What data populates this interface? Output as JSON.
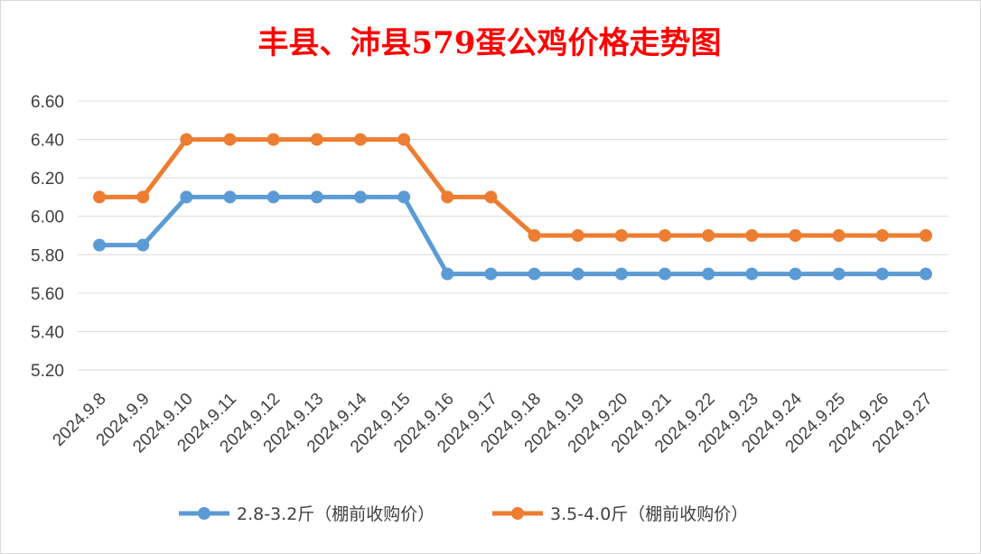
{
  "chart_data": {
    "type": "line",
    "title": "丰县、沛县579蛋公鸡价格走势图",
    "xlabel": "",
    "ylabel": "",
    "ylim": [
      5.2,
      6.6
    ],
    "y_ticks": [
      "5.20",
      "5.40",
      "5.60",
      "5.80",
      "6.00",
      "6.20",
      "6.40",
      "6.60"
    ],
    "grid": true,
    "legend_position": "bottom",
    "categories": [
      "2024.9.8",
      "2024.9.9",
      "2024.9.10",
      "2024.9.11",
      "2024.9.12",
      "2024.9.13",
      "2024.9.14",
      "2024.9.15",
      "2024.9.16",
      "2024.9.17",
      "2024.9.18",
      "2024.9.19",
      "2024.9.20",
      "2024.9.21",
      "2024.9.22",
      "2024.9.23",
      "2024.9.24",
      "2024.9.25",
      "2024.9.26",
      "2024.9.27"
    ],
    "series": [
      {
        "name": "2.8-3.2斤（棚前收购价）",
        "color": "#5b9bd5",
        "values": [
          5.85,
          5.85,
          6.1,
          6.1,
          6.1,
          6.1,
          6.1,
          6.1,
          5.7,
          5.7,
          5.7,
          5.7,
          5.7,
          5.7,
          5.7,
          5.7,
          5.7,
          5.7,
          5.7,
          5.7
        ]
      },
      {
        "name": "3.5-4.0斤（棚前收购价）",
        "color": "#ed7d31",
        "values": [
          6.1,
          6.1,
          6.4,
          6.4,
          6.4,
          6.4,
          6.4,
          6.4,
          6.1,
          6.1,
          5.9,
          5.9,
          5.9,
          5.9,
          5.9,
          5.9,
          5.9,
          5.9,
          5.9,
          5.9
        ]
      }
    ]
  }
}
